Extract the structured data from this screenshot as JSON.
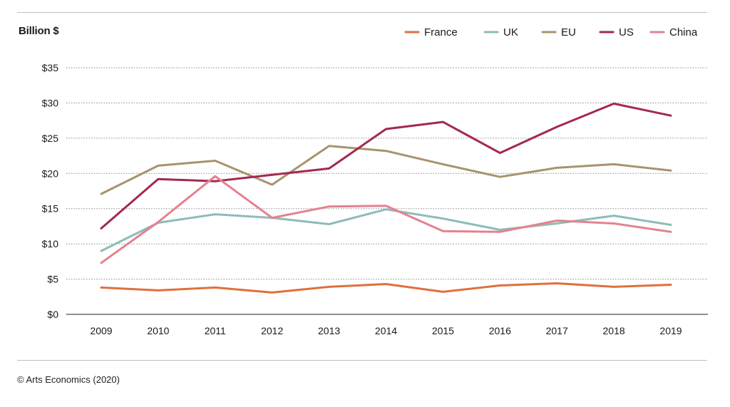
{
  "source": "© Arts Economics (2020)",
  "chart_data": {
    "type": "line",
    "title": "",
    "ylabel": "Billion $",
    "xlabel": "",
    "x": [
      "2009",
      "2010",
      "2011",
      "2012",
      "2013",
      "2014",
      "2015",
      "2016",
      "2017",
      "2018",
      "2019"
    ],
    "ylim": [
      0,
      35
    ],
    "yticks": [
      0,
      5,
      10,
      15,
      20,
      25,
      30,
      35
    ],
    "ytick_labels": [
      "$0",
      "$5",
      "$10",
      "$15",
      "$20",
      "$25",
      "$30",
      "$35"
    ],
    "grid": true,
    "legend_position": "top-right",
    "series": [
      {
        "name": "France",
        "color": "#e0703c",
        "values": [
          3.8,
          3.4,
          3.8,
          3.1,
          3.9,
          4.3,
          3.2,
          4.1,
          4.4,
          3.9,
          4.2
        ]
      },
      {
        "name": "UK",
        "color": "#8ebcb8",
        "values": [
          9.0,
          13.0,
          14.2,
          13.7,
          12.8,
          14.9,
          13.6,
          12.0,
          12.9,
          14.0,
          12.7
        ]
      },
      {
        "name": "EU",
        "color": "#a8946b",
        "values": [
          17.1,
          21.1,
          21.8,
          18.4,
          23.9,
          23.2,
          21.3,
          19.5,
          20.8,
          21.3,
          20.4
        ]
      },
      {
        "name": "US",
        "color": "#a3294f",
        "values": [
          12.2,
          19.2,
          18.9,
          19.8,
          20.7,
          26.3,
          27.3,
          22.9,
          26.6,
          29.9,
          28.2
        ]
      },
      {
        "name": "China",
        "color": "#e5818f",
        "values": [
          7.3,
          13.1,
          19.6,
          13.7,
          15.3,
          15.4,
          11.8,
          11.7,
          13.3,
          12.9,
          11.7
        ]
      }
    ]
  }
}
